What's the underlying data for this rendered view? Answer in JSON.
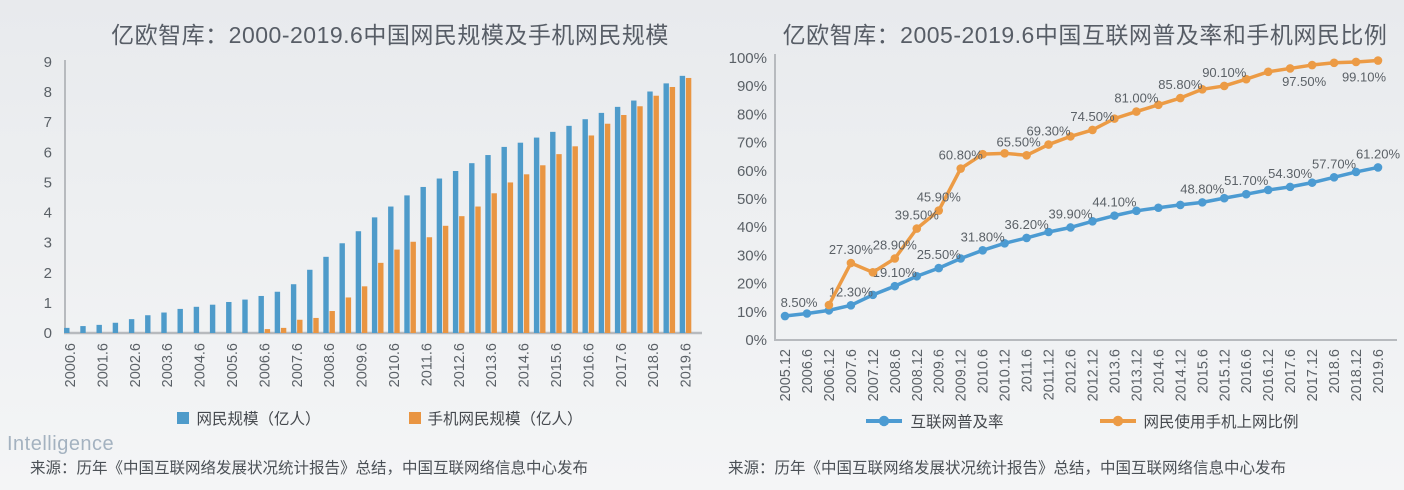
{
  "watermark": "Intelligence",
  "colors": {
    "blue": "#4e9bca",
    "orange": "#e99542",
    "line_blue": "#4c9bd2",
    "line_orange": "#ec9b45",
    "axis": "#b7babe",
    "tick_text": "#5b6167",
    "title_text": "#575d66"
  },
  "chart_data": [
    {
      "type": "bar",
      "title": "亿欧智库：2000-2019.6中国网民规模及手机网民规模",
      "source": "来源：历年《中国互联网络发展状况统计报告》总结，中国互联网络信息中心发布",
      "categories": [
        "2000.6",
        "2000.12",
        "2001.6",
        "2001.12",
        "2002.6",
        "2002.12",
        "2003.6",
        "2003.12",
        "2004.6",
        "2004.12",
        "2005.6",
        "2005.12",
        "2006.6",
        "2006.12",
        "2007.6",
        "2007.12",
        "2008.6",
        "2008.12",
        "2009.6",
        "2009.12",
        "2010.6",
        "2010.12",
        "2011.6",
        "2011.12",
        "2012.6",
        "2012.12",
        "2013.6",
        "2013.12",
        "2014.6",
        "2014.12",
        "2015.6",
        "2015.12",
        "2016.6",
        "2016.12",
        "2017.6",
        "2017.12",
        "2018.6",
        "2018.12",
        "2019.6"
      ],
      "x_labels_every": 2,
      "ylim": [
        0,
        9
      ],
      "yticks": [
        0,
        1,
        2,
        3,
        4,
        5,
        6,
        7,
        8,
        9
      ],
      "grid": false,
      "legend_position": "bottom",
      "series": [
        {
          "name": "网民规模（亿人）",
          "color": "#4e9bca",
          "values": [
            0.17,
            0.23,
            0.27,
            0.34,
            0.46,
            0.59,
            0.68,
            0.8,
            0.87,
            0.94,
            1.03,
            1.11,
            1.23,
            1.37,
            1.62,
            2.1,
            2.53,
            2.98,
            3.38,
            3.84,
            4.2,
            4.57,
            4.85,
            5.13,
            5.38,
            5.64,
            5.91,
            6.18,
            6.32,
            6.49,
            6.68,
            6.88,
            7.1,
            7.31,
            7.51,
            7.72,
            8.02,
            8.29,
            8.54
          ]
        },
        {
          "name": "手机网民规模（亿人）",
          "color": "#e99542",
          "values": [
            0,
            0,
            0,
            0,
            0,
            0,
            0,
            0,
            0,
            0,
            0,
            0,
            0.13,
            0.17,
            0.44,
            0.5,
            0.73,
            1.18,
            1.55,
            2.33,
            2.77,
            3.03,
            3.18,
            3.56,
            3.88,
            4.2,
            4.64,
            5.0,
            5.27,
            5.57,
            5.94,
            6.2,
            6.56,
            6.95,
            7.24,
            7.53,
            7.88,
            8.17,
            8.47
          ]
        }
      ]
    },
    {
      "type": "line",
      "title": "亿欧智库：2005-2019.6中国互联网普及率和手机网民比例",
      "source": "来源：历年《中国互联网络发展状况统计报告》总结，中国互联网络信息中心发布",
      "categories": [
        "2005.12",
        "2006.6",
        "2006.12",
        "2007.6",
        "2007.12",
        "2008.6",
        "2008.12",
        "2009.6",
        "2009.12",
        "2010.6",
        "2010.12",
        "2011.6",
        "2011.12",
        "2012.6",
        "2012.12",
        "2013.6",
        "2013.12",
        "2014.6",
        "2014.12",
        "2015.6",
        "2015.12",
        "2016.6",
        "2016.12",
        "2017.6",
        "2017.12",
        "2018.6",
        "2018.12",
        "2019.6"
      ],
      "ylim": [
        0,
        100
      ],
      "yticks": [
        0,
        10,
        20,
        30,
        40,
        50,
        60,
        70,
        80,
        90,
        100
      ],
      "ytick_suffix": "%",
      "grid": false,
      "legend_position": "bottom",
      "series": [
        {
          "name": "互联网普及率",
          "color": "#4c9bd2",
          "values": [
            8.5,
            9.4,
            10.5,
            12.3,
            16.0,
            19.1,
            22.6,
            25.5,
            28.9,
            31.8,
            34.3,
            36.2,
            38.3,
            39.9,
            42.1,
            44.1,
            45.8,
            46.9,
            47.9,
            48.8,
            50.3,
            51.7,
            53.2,
            54.3,
            55.8,
            57.7,
            59.6,
            61.2
          ],
          "point_labels": [
            {
              "i": 0,
              "text": "8.50%",
              "dx": 14
            },
            {
              "i": 3,
              "text": "12.30%"
            },
            {
              "i": 5,
              "text": "19.10%"
            },
            {
              "i": 7,
              "text": "25.50%"
            },
            {
              "i": 9,
              "text": "31.80%"
            },
            {
              "i": 11,
              "text": "36.20%"
            },
            {
              "i": 13,
              "text": "39.90%"
            },
            {
              "i": 15,
              "text": "44.10%"
            },
            {
              "i": 19,
              "text": "48.80%"
            },
            {
              "i": 21,
              "text": "51.70%"
            },
            {
              "i": 23,
              "text": "54.30%"
            },
            {
              "i": 25,
              "text": "57.70%"
            },
            {
              "i": 27,
              "text": "61.20%"
            }
          ]
        },
        {
          "name": "网民使用手机上网比例",
          "color": "#ec9b45",
          "values": [
            null,
            null,
            12.4,
            27.3,
            24.0,
            28.9,
            39.5,
            45.9,
            60.8,
            65.9,
            66.2,
            65.5,
            69.3,
            72.2,
            74.5,
            78.5,
            81.0,
            83.4,
            85.8,
            88.9,
            90.1,
            92.5,
            95.1,
            96.3,
            97.5,
            98.3,
            98.6,
            99.1
          ],
          "point_labels": [
            {
              "i": 3,
              "text": "27.30%"
            },
            {
              "i": 5,
              "text": "28.90%"
            },
            {
              "i": 6,
              "text": "39.50%"
            },
            {
              "i": 7,
              "text": "45.90%"
            },
            {
              "i": 8,
              "text": "60.80%"
            },
            {
              "i": 11,
              "text": "65.50%",
              "dx": -8
            },
            {
              "i": 12,
              "text": "69.30%"
            },
            {
              "i": 14,
              "text": "74.50%"
            },
            {
              "i": 16,
              "text": "81.00%"
            },
            {
              "i": 18,
              "text": "85.80%"
            },
            {
              "i": 20,
              "text": "90.10%"
            },
            {
              "i": 24,
              "text": "97.50%",
              "below": true,
              "dx": -8
            },
            {
              "i": 27,
              "text": "99.10%",
              "below": true,
              "dx": -14
            }
          ]
        }
      ]
    }
  ]
}
